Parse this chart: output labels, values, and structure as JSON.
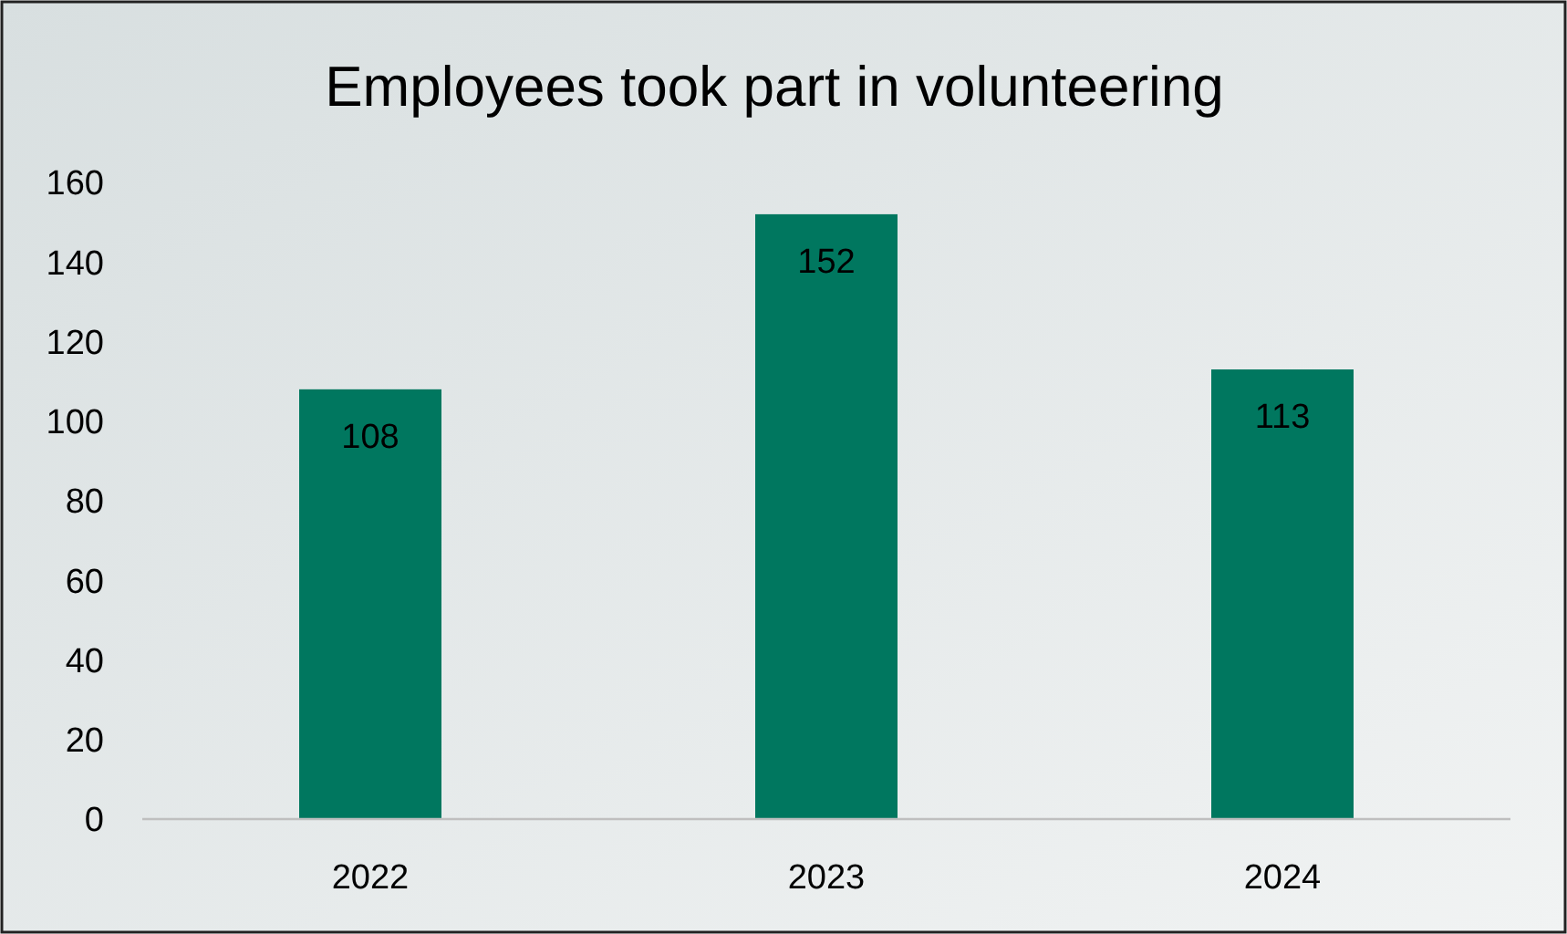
{
  "chart_data": {
    "type": "bar",
    "title": "Employees took part in volunteering",
    "categories": [
      "2022",
      "2023",
      "2024"
    ],
    "values": [
      108,
      152,
      113
    ],
    "color": "#00775f",
    "ylim": [
      0,
      160
    ],
    "yticks": [
      0,
      20,
      40,
      60,
      80,
      100,
      120,
      140,
      160
    ],
    "data_labels": true,
    "grid": false
  }
}
